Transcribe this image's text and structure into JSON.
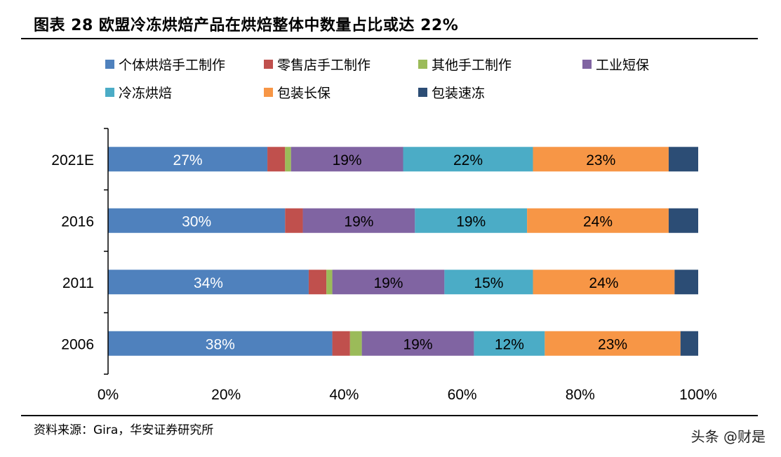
{
  "title": "图表 28 欧盟冷冻烘焙产品在烘焙整体中数量占比或达 22%",
  "source": "资料来源：Gira，华安证券研究所",
  "watermark": "头条 @财是",
  "chart_data": {
    "type": "bar",
    "orientation": "horizontal",
    "stacked": true,
    "percent_stacked": true,
    "categories": [
      "2021E",
      "2016",
      "2011",
      "2006"
    ],
    "xlim": [
      0,
      100
    ],
    "x_ticks": [
      "0%",
      "20%",
      "40%",
      "60%",
      "80%",
      "100%"
    ],
    "legend_placement": "top",
    "series": [
      {
        "name": "个体烘焙手工制作",
        "color": "#4f81bd",
        "values": [
          27,
          30,
          34,
          38
        ],
        "labels": [
          "27%",
          "30%",
          "34%",
          "38%"
        ],
        "label_color": "#ffffff"
      },
      {
        "name": "零售店手工制作",
        "color": "#c0504d",
        "values": [
          3,
          3,
          3,
          3
        ],
        "labels": [
          "",
          "",
          "",
          ""
        ],
        "label_color": "#000000"
      },
      {
        "name": "其他手工制作",
        "color": "#9bbb59",
        "values": [
          1,
          0,
          1,
          2
        ],
        "labels": [
          "",
          "",
          "",
          ""
        ],
        "label_color": "#000000"
      },
      {
        "name": "工业短保",
        "color": "#8064a2",
        "values": [
          19,
          19,
          19,
          19
        ],
        "labels": [
          "19%",
          "19%",
          "19%",
          "19%"
        ],
        "label_color": "#000000"
      },
      {
        "name": "冷冻烘焙",
        "color": "#4bacc6",
        "values": [
          22,
          19,
          15,
          12
        ],
        "labels": [
          "22%",
          "19%",
          "15%",
          "12%"
        ],
        "label_color": "#000000"
      },
      {
        "name": "包装长保",
        "color": "#f79646",
        "values": [
          23,
          24,
          24,
          23
        ],
        "labels": [
          "23%",
          "24%",
          "24%",
          "23%"
        ],
        "label_color": "#000000"
      },
      {
        "name": "包装速冻",
        "color": "#2c4d75",
        "values": [
          5,
          5,
          4,
          3
        ],
        "labels": [
          "",
          "",
          "",
          ""
        ],
        "label_color": "#ffffff"
      }
    ]
  }
}
